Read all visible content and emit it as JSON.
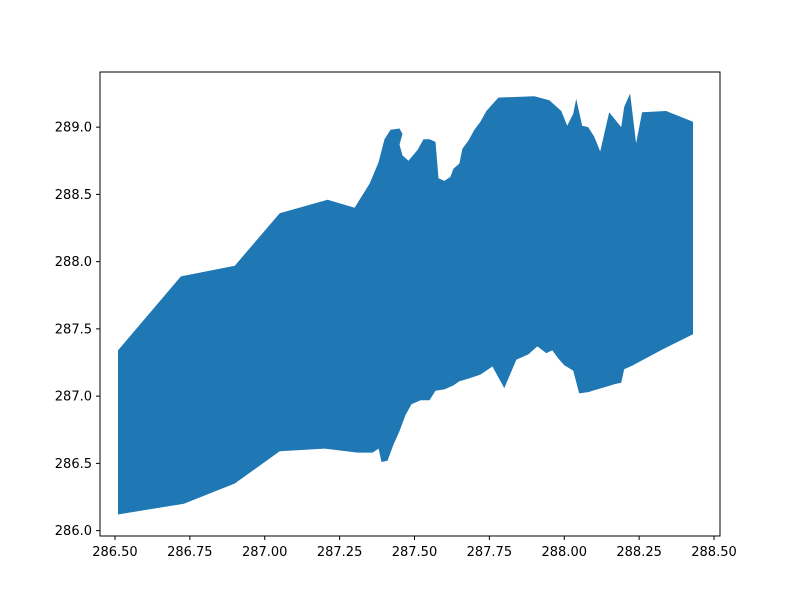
{
  "chart_data": {
    "type": "area",
    "title": "",
    "xlabel": "",
    "ylabel": "",
    "xlim": [
      286.45,
      288.52
    ],
    "ylim": [
      285.96,
      289.41
    ],
    "grid": false,
    "legend": "none",
    "fill_color": "#1f77b4",
    "x_ticks": [
      286.5,
      286.75,
      287.0,
      287.25,
      287.5,
      287.75,
      288.0,
      288.25,
      288.5
    ],
    "x_tick_labels": [
      "286.50",
      "286.75",
      "287.00",
      "287.25",
      "287.50",
      "287.75",
      "288.00",
      "288.25",
      "288.50"
    ],
    "y_ticks": [
      286.0,
      286.5,
      287.0,
      287.5,
      288.0,
      288.5,
      289.0
    ],
    "y_tick_labels": [
      "286.0",
      "286.5",
      "287.0",
      "287.5",
      "288.0",
      "288.5",
      "289.0"
    ],
    "series": [
      {
        "upper": [
          [
            286.51,
            287.34
          ],
          [
            286.72,
            287.89
          ],
          [
            286.9,
            287.97
          ],
          [
            287.05,
            288.36
          ],
          [
            287.21,
            288.46
          ],
          [
            287.3,
            288.4
          ],
          [
            287.35,
            288.58
          ],
          [
            287.38,
            288.74
          ],
          [
            287.4,
            288.91
          ],
          [
            287.42,
            288.98
          ],
          [
            287.45,
            288.99
          ],
          [
            287.46,
            288.95
          ],
          [
            287.45,
            288.87
          ],
          [
            287.46,
            288.79
          ],
          [
            287.48,
            288.75
          ],
          [
            287.51,
            288.83
          ],
          [
            287.53,
            288.91
          ],
          [
            287.55,
            288.91
          ],
          [
            287.57,
            288.89
          ],
          [
            287.58,
            288.62
          ],
          [
            287.6,
            288.6
          ],
          [
            287.62,
            288.63
          ],
          [
            287.63,
            288.69
          ],
          [
            287.65,
            288.73
          ],
          [
            287.66,
            288.84
          ],
          [
            287.68,
            288.9
          ],
          [
            287.7,
            288.98
          ],
          [
            287.72,
            289.04
          ],
          [
            287.74,
            289.12
          ],
          [
            287.76,
            289.17
          ],
          [
            287.78,
            289.22
          ],
          [
            287.9,
            289.23
          ],
          [
            287.95,
            289.2
          ],
          [
            287.99,
            289.12
          ],
          [
            288.01,
            289.01
          ],
          [
            288.03,
            289.1
          ],
          [
            288.04,
            289.21
          ],
          [
            288.06,
            289.01
          ],
          [
            288.08,
            289.0
          ],
          [
            288.1,
            288.93
          ],
          [
            288.12,
            288.82
          ],
          [
            288.15,
            289.11
          ],
          [
            288.19,
            289.0
          ],
          [
            288.2,
            289.15
          ],
          [
            288.22,
            289.25
          ],
          [
            288.24,
            288.88
          ],
          [
            288.26,
            289.11
          ],
          [
            288.34,
            289.12
          ],
          [
            288.43,
            289.04
          ]
        ],
        "lower": [
          [
            286.51,
            286.12
          ],
          [
            286.73,
            286.2
          ],
          [
            286.9,
            286.35
          ],
          [
            287.05,
            286.59
          ],
          [
            287.2,
            286.61
          ],
          [
            287.31,
            286.58
          ],
          [
            287.36,
            286.58
          ],
          [
            287.38,
            286.61
          ],
          [
            287.39,
            286.51
          ],
          [
            287.41,
            286.52
          ],
          [
            287.43,
            286.64
          ],
          [
            287.45,
            286.74
          ],
          [
            287.47,
            286.86
          ],
          [
            287.49,
            286.94
          ],
          [
            287.52,
            286.97
          ],
          [
            287.55,
            286.97
          ],
          [
            287.57,
            287.04
          ],
          [
            287.6,
            287.05
          ],
          [
            287.63,
            287.08
          ],
          [
            287.65,
            287.11
          ],
          [
            287.68,
            287.13
          ],
          [
            287.72,
            287.16
          ],
          [
            287.76,
            287.22
          ],
          [
            287.8,
            287.06
          ],
          [
            287.84,
            287.27
          ],
          [
            287.88,
            287.31
          ],
          [
            287.91,
            287.37
          ],
          [
            287.94,
            287.32
          ],
          [
            287.96,
            287.34
          ],
          [
            287.98,
            287.28
          ],
          [
            288.0,
            287.23
          ],
          [
            288.03,
            287.19
          ],
          [
            288.05,
            287.02
          ],
          [
            288.08,
            287.03
          ],
          [
            288.11,
            287.05
          ],
          [
            288.14,
            287.07
          ],
          [
            288.17,
            287.09
          ],
          [
            288.19,
            287.1
          ],
          [
            288.2,
            287.2
          ],
          [
            288.23,
            287.23
          ],
          [
            288.33,
            287.35
          ],
          [
            288.43,
            287.46
          ]
        ]
      }
    ]
  }
}
